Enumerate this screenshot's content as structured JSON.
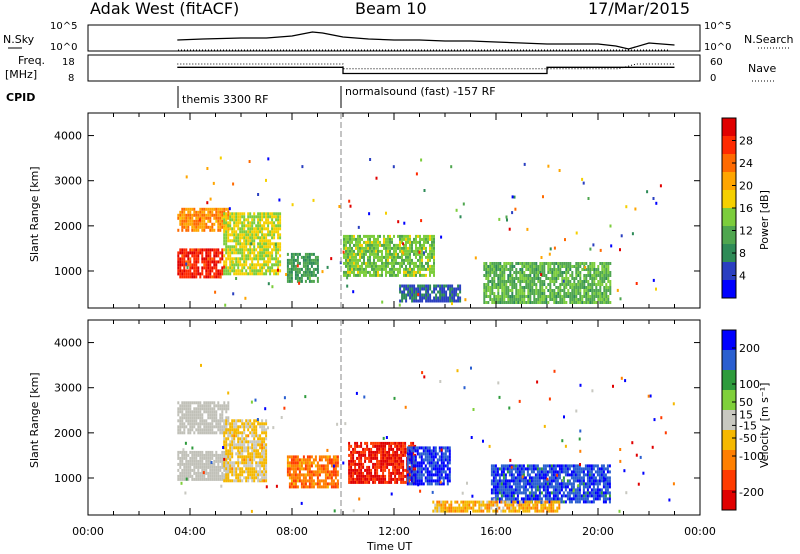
{
  "header": {
    "station": "Adak West (fitACF)",
    "beam": "Beam 10",
    "date": "17/Mar/2015"
  },
  "sky_panel": {
    "left_label": "N.Sky",
    "right_label": "N.Search",
    "left_ticks": [
      "10^5",
      "10^0"
    ],
    "right_ticks": [
      "10^5",
      "10^0"
    ]
  },
  "freq_panel": {
    "left_label_line1": "Freq.",
    "left_label_line2": "[MHz]",
    "right_label": "Nave",
    "left_ticks": [
      "18",
      "8"
    ],
    "right_ticks": [
      "60",
      "0"
    ]
  },
  "cpid": {
    "label": "CPID",
    "segments": [
      {
        "start_hour": 3.5,
        "end_hour": 10.0,
        "text": "themis 3300 RF"
      },
      {
        "start_hour": 10.0,
        "end_hour": 23.0,
        "text": "normalsound (fast) -157 RF"
      }
    ]
  },
  "x_axis": {
    "label": "Time UT",
    "ticks": [
      "00:00",
      "04:00",
      "08:00",
      "12:00",
      "16:00",
      "20:00",
      "00:00"
    ],
    "range_hours": [
      0,
      24
    ]
  },
  "colors": {
    "power": [
      "#0000ff",
      "#2a3fc0",
      "#2e8b57",
      "#4fa64f",
      "#7ccd3c",
      "#f5d000",
      "#ffa500",
      "#ff6a00",
      "#ff2a00",
      "#e00000"
    ],
    "velocity": [
      "#e00000",
      "#ff3b00",
      "#ff7f00",
      "#f5b800",
      "#c8c8c0",
      "#7fcf3a",
      "#2e9b3c",
      "#2a5fd0",
      "#0000ff"
    ],
    "ground_scatter": "#c0c0b8"
  },
  "chart_data": [
    {
      "type": "line",
      "title": "N.Sky / N.Search",
      "x_unit": "hours UT",
      "series": [
        {
          "name": "N.Sky",
          "x": [
            3.5,
            4.5,
            6,
            7,
            8,
            8.8,
            9.2,
            9.6,
            10,
            11,
            12,
            13,
            14,
            15,
            16,
            17,
            18,
            19,
            20,
            20.7,
            21.2,
            22,
            23
          ],
          "y": [
            0.45,
            0.5,
            0.55,
            0.55,
            0.65,
            0.85,
            0.8,
            0.7,
            0.6,
            0.5,
            0.45,
            0.45,
            0.4,
            0.4,
            0.35,
            0.3,
            0.25,
            0.25,
            0.25,
            0.15,
            0,
            0.3,
            0.2
          ]
        }
      ]
    },
    {
      "type": "line",
      "title": "Freq. / Nave",
      "series": [
        {
          "name": "Freq. [MHz]",
          "x": [
            3.5,
            10.0,
            10.0,
            18.0,
            18.0,
            20.8,
            21.5,
            23.0
          ],
          "y": [
            13.3,
            13.3,
            10.7,
            10.7,
            13.3,
            13.3,
            13.3,
            13.3
          ]
        },
        {
          "name": "Nave",
          "x": [
            3.5,
            10.0,
            10.0,
            20.8,
            21.5,
            23.0
          ],
          "y": [
            40,
            40,
            28,
            28,
            40,
            40
          ]
        }
      ],
      "ylim_left": [
        8,
        18
      ],
      "ylim_right": [
        0,
        60
      ]
    },
    {
      "type": "heatmap",
      "title": "Power [dB]",
      "ylabel": "Slant Range [km]",
      "colorbar_label": "Power [dB]",
      "colorbar_ticks": [
        4,
        8,
        12,
        16,
        20,
        24,
        28
      ],
      "ylim": [
        180,
        4500
      ],
      "y_ticks": [
        1000,
        2000,
        3000,
        4000
      ],
      "regions": [
        {
          "t0": 3.5,
          "t1": 5.3,
          "r0": 850,
          "r1": 1500,
          "value": 28
        },
        {
          "t0": 3.5,
          "t1": 5.5,
          "r0": 1900,
          "r1": 2400,
          "value": 22
        },
        {
          "t0": 5.3,
          "t1": 7.5,
          "r0": 950,
          "r1": 2300,
          "value": 16
        },
        {
          "t0": 7.8,
          "t1": 9.0,
          "r0": 800,
          "r1": 1400,
          "value": 10
        },
        {
          "t0": 10.0,
          "t1": 13.6,
          "r0": 900,
          "r1": 1800,
          "value": 14
        },
        {
          "t0": 12.2,
          "t1": 14.6,
          "r0": 350,
          "r1": 700,
          "value": 6
        },
        {
          "t0": 15.5,
          "t1": 20.5,
          "r0": 300,
          "r1": 1200,
          "value": 12
        }
      ]
    },
    {
      "type": "heatmap",
      "title": "Velocity [m s^-1]",
      "ylabel": "Slant Range [km]",
      "colorbar_label": "Velocity [m s⁻¹]",
      "colorbar_ticks": [
        -200,
        -100,
        -50,
        -15,
        15,
        50,
        100,
        200
      ],
      "ylim": [
        180,
        4500
      ],
      "y_ticks": [
        1000,
        2000,
        3000,
        4000
      ],
      "regions": [
        {
          "t0": 3.5,
          "t1": 5.5,
          "r0": 950,
          "r1": 1600,
          "value": 0
        },
        {
          "t0": 3.5,
          "t1": 5.5,
          "r0": 2000,
          "r1": 2700,
          "value": 0
        },
        {
          "t0": 5.3,
          "t1": 7.0,
          "r0": 950,
          "r1": 2300,
          "value": -40
        },
        {
          "t0": 7.8,
          "t1": 9.8,
          "r0": 800,
          "r1": 1500,
          "value": -120
        },
        {
          "t0": 10.2,
          "t1": 12.8,
          "r0": 900,
          "r1": 1800,
          "value": -200
        },
        {
          "t0": 12.5,
          "t1": 14.2,
          "r0": 900,
          "r1": 1700,
          "value": 200
        },
        {
          "t0": 15.8,
          "t1": 20.5,
          "r0": 500,
          "r1": 1300,
          "value": 180
        },
        {
          "t0": 13.5,
          "t1": 18.5,
          "r0": 250,
          "r1": 500,
          "value": -60
        }
      ]
    }
  ]
}
